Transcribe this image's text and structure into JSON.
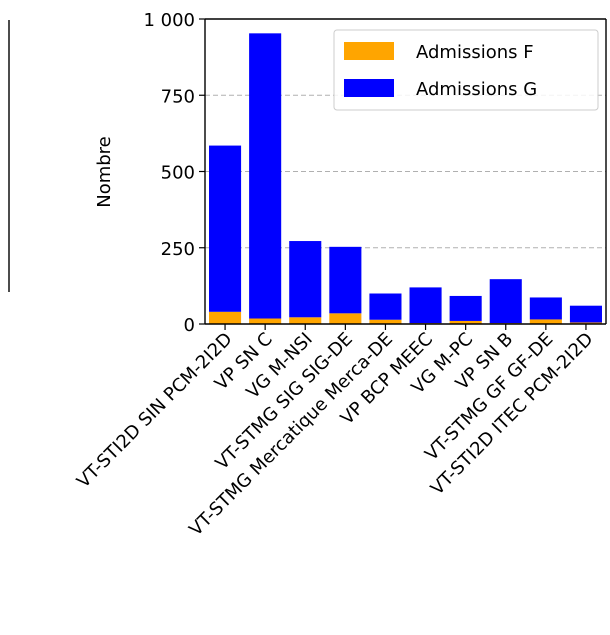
{
  "chart_data": {
    "type": "bar",
    "stacked": true,
    "categories": [
      "VT-STI2D SIN PCM-2I2D",
      "VP SN C",
      "VG M-NSI",
      "VT-STMG SIG SIG-DE",
      "VT-STMG Mercatique Merca-DE",
      "VP BCP MEEC",
      "VG M-PC",
      "VP SN B",
      "VT-STMG GF GF-DE",
      "VT-STI2D ITEC PCM-2I2D"
    ],
    "series": [
      {
        "name": "Admissions F",
        "color": "#ffa500",
        "values": [
          40,
          18,
          22,
          35,
          14,
          3,
          10,
          3,
          15,
          5
        ]
      },
      {
        "name": "Admissions G",
        "color": "#0000ff",
        "values": [
          545,
          935,
          250,
          218,
          86,
          117,
          82,
          144,
          72,
          55
        ]
      }
    ],
    "ylabel": "Nombre",
    "yticks": [
      {
        "v": 0,
        "label": "0"
      },
      {
        "v": 250,
        "label": "250"
      },
      {
        "v": 500,
        "label": "500"
      },
      {
        "v": 750,
        "label": "750"
      },
      {
        "v": 1000,
        "label": "1 000"
      }
    ],
    "ylim": [
      0,
      1000
    ],
    "grid": "y-dashed",
    "legend_position": "top-right"
  }
}
